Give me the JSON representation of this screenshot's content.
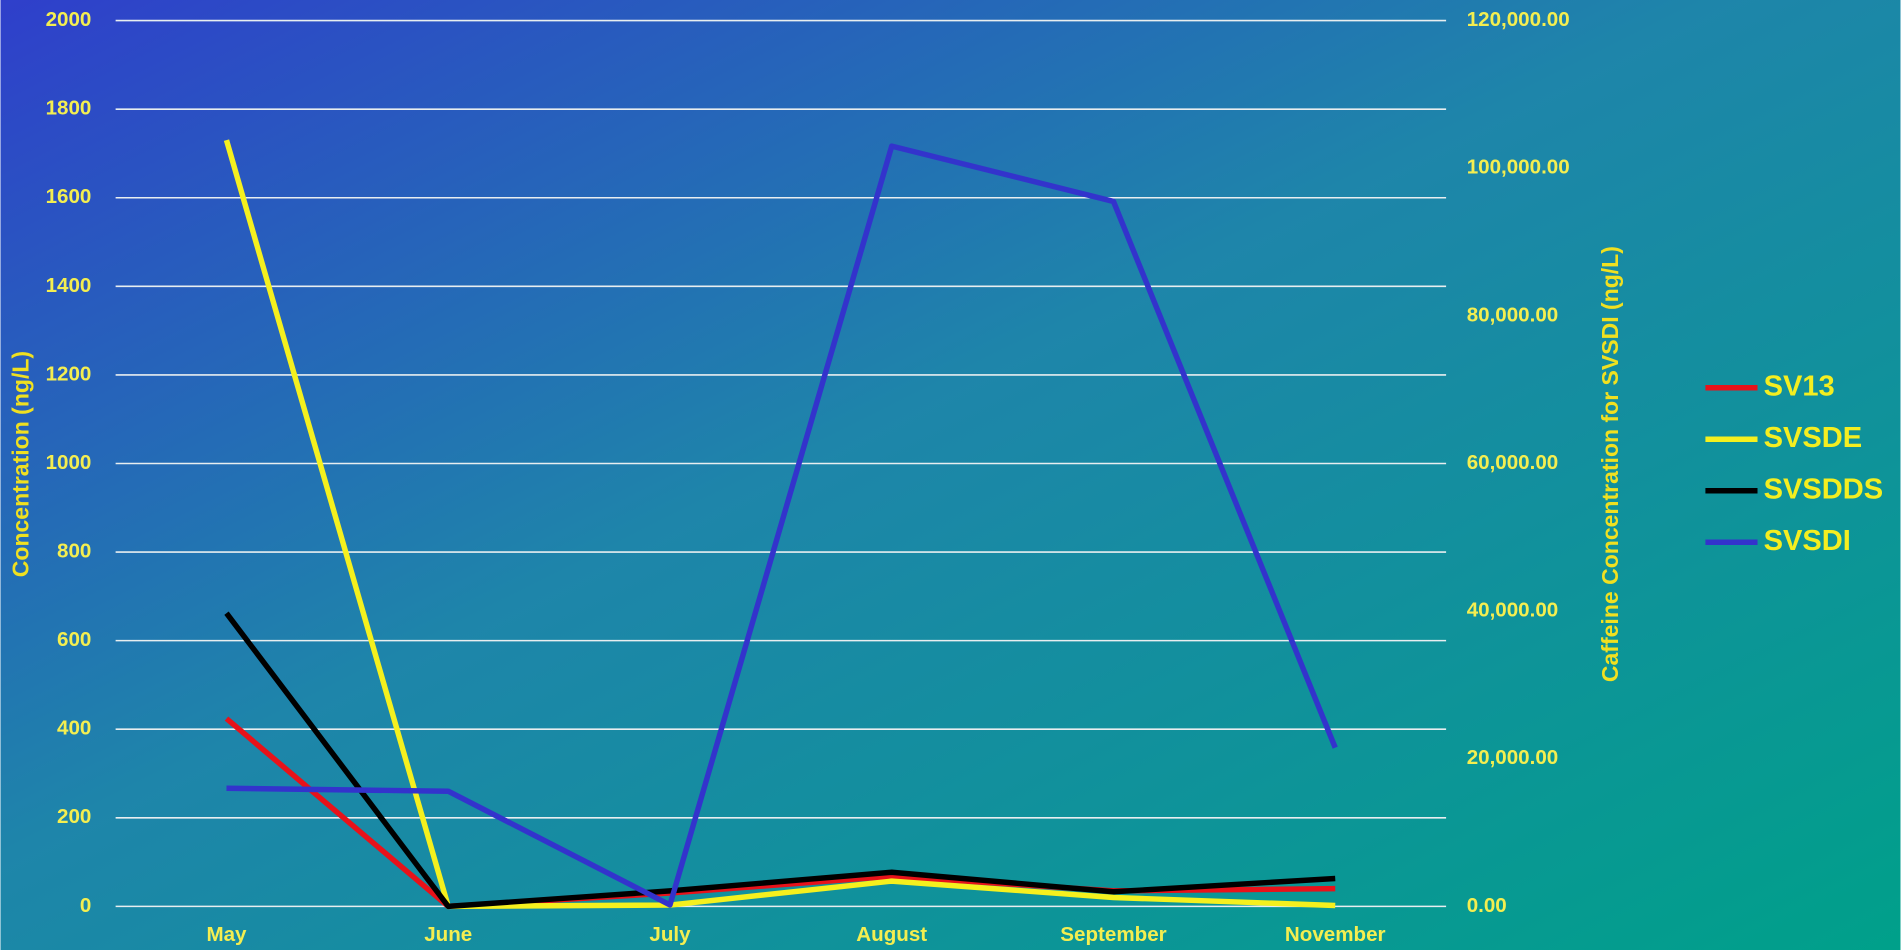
{
  "chart_data": {
    "type": "line",
    "y_label": "Concentration (ng/L)",
    "y2_label": "Caffeine Concentration for SVSDI (ng/L)",
    "categories": [
      "May",
      "June",
      "July",
      "August",
      "September",
      "November"
    ],
    "series": [
      {
        "name": "SV13",
        "color": "#e8121a",
        "values": [
          424,
          0,
          30,
          68,
          35,
          40
        ]
      },
      {
        "name": "SVSDE",
        "color": "#f5f01e",
        "values": [
          1730,
          0,
          3,
          57,
          20,
          2
        ]
      },
      {
        "name": "SVSDDS",
        "color": "#000000",
        "values": [
          662,
          0,
          35,
          77,
          33,
          63
        ]
      },
      {
        "name": "SVSDI",
        "color": "#3333cc",
        "axis": "y2",
        "values": [
          16000,
          15600,
          200,
          103000,
          95500,
          21500
        ]
      }
    ],
    "ylim": [
      0,
      2000
    ],
    "yticks": [
      0,
      200,
      400,
      600,
      800,
      1000,
      1200,
      1400,
      1600,
      1800,
      2000
    ],
    "y2lim": [
      0,
      120000
    ],
    "y2ticks": [
      {
        "value": 0,
        "label": "0.00"
      },
      {
        "value": 20000,
        "label": "20,000.00"
      },
      {
        "value": 40000,
        "label": "40,000.00"
      },
      {
        "value": 60000,
        "label": "60,000.00"
      },
      {
        "value": 80000,
        "label": "80,000.00"
      },
      {
        "value": 100000,
        "label": "100,000.00"
      },
      {
        "value": 120000,
        "label": "120,000.00"
      }
    ],
    "grid": true,
    "legend": "right"
  }
}
